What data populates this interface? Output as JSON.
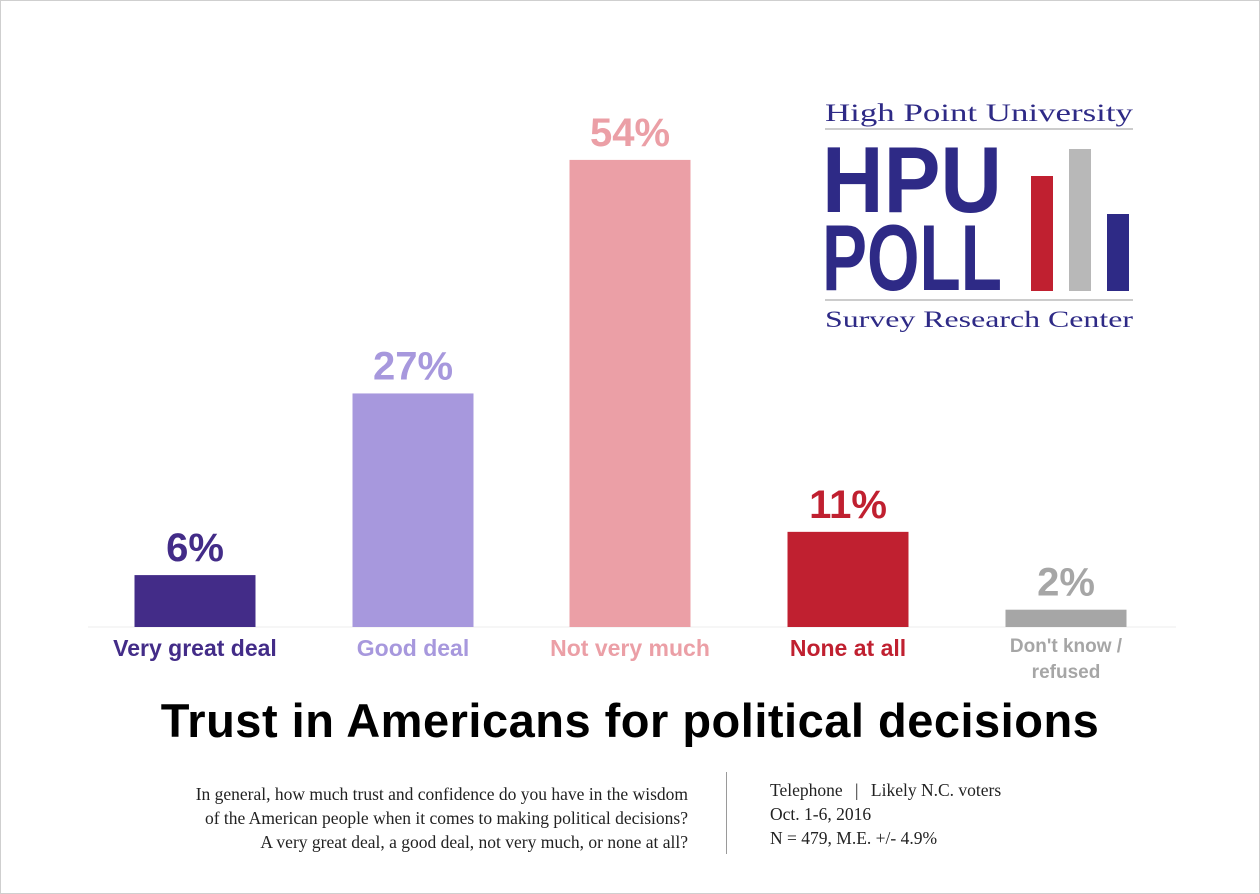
{
  "chart_data": {
    "type": "bar",
    "title": "Trust in Americans for political decisions",
    "categories": [
      "Very great deal",
      "Good deal",
      "Not very much",
      "None at all",
      "Don't know / refused"
    ],
    "values": [
      6,
      27,
      54,
      11,
      2
    ],
    "value_labels": [
      "6%",
      "27%",
      "54%",
      "11%",
      "2%"
    ],
    "colors": [
      "#432c88",
      "#a798dd",
      "#eb9fa6",
      "#c02030",
      "#a6a6a6"
    ],
    "label_colors": [
      "#432c88",
      "#a798dd",
      "#eb9fa6",
      "#c02030",
      "#a6a6a6"
    ],
    "ylim": [
      0,
      60
    ],
    "xlabel": "",
    "ylabel": ""
  },
  "logo": {
    "line1": "High Point University",
    "big1": "HPU",
    "big2": "POLL",
    "line2": "Survey Research Center",
    "bar_colors": [
      "#c02030",
      "#b8b8b8",
      "#2e2a86"
    ]
  },
  "question": {
    "line1": "In general, how much trust and confidence do you have in the wisdom",
    "line2": "of the American people when it comes to making political decisions?",
    "line3": "A very great deal, a good deal, not very much, or none at all?"
  },
  "methodology": {
    "mode": "Telephone",
    "separator": "|",
    "population": "Likely N.C. voters",
    "dates": "Oct. 1-6, 2016",
    "sample": "N = 479, M.E. +/- 4.9%"
  }
}
